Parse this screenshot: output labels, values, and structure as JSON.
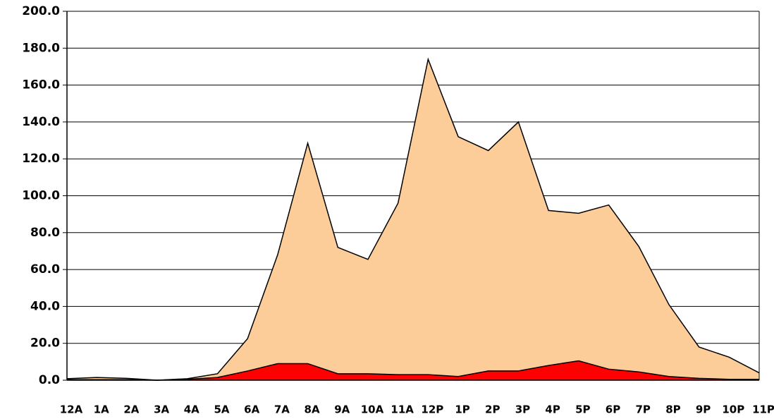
{
  "chart_data": {
    "type": "area",
    "categories": [
      "12A",
      "1A",
      "2A",
      "3A",
      "4A",
      "5A",
      "6A",
      "7A",
      "8A",
      "9A",
      "10A",
      "11A",
      "12P",
      "1P",
      "2P",
      "3P",
      "4P",
      "5P",
      "6P",
      "7P",
      "8P",
      "9P",
      "10P",
      "11P"
    ],
    "series": [
      {
        "color": "#fccc99",
        "values": [
          0.8,
          1.5,
          1.0,
          0,
          0.8,
          3.5,
          22.5,
          68,
          128.5,
          72,
          65.5,
          96,
          174,
          132,
          124.5,
          140,
          92,
          90.5,
          95,
          72.5,
          41,
          18,
          12.5,
          4
        ]
      },
      {
        "color": "#ff0000",
        "values": [
          0.3,
          0.3,
          0.3,
          0,
          0.5,
          1.5,
          5,
          9,
          9,
          3.5,
          3.5,
          3,
          3,
          2,
          5,
          5,
          8,
          10.5,
          6,
          4.5,
          2,
          1,
          0.5,
          0.5
        ]
      }
    ],
    "ylim": [
      0,
      200
    ],
    "yticks": [
      {
        "value": 0,
        "label": "0.0"
      },
      {
        "value": 20,
        "label": "20.0"
      },
      {
        "value": 40,
        "label": "40.0"
      },
      {
        "value": 60,
        "label": "60.0"
      },
      {
        "value": 80,
        "label": "80.0"
      },
      {
        "value": 100,
        "label": "100.0"
      },
      {
        "value": 120,
        "label": "120.0"
      },
      {
        "value": 140,
        "label": "140.0"
      },
      {
        "value": 160,
        "label": "160.0"
      },
      {
        "value": 180,
        "label": "180.0"
      },
      {
        "value": 200,
        "label": "200.0"
      }
    ],
    "grid": true
  }
}
